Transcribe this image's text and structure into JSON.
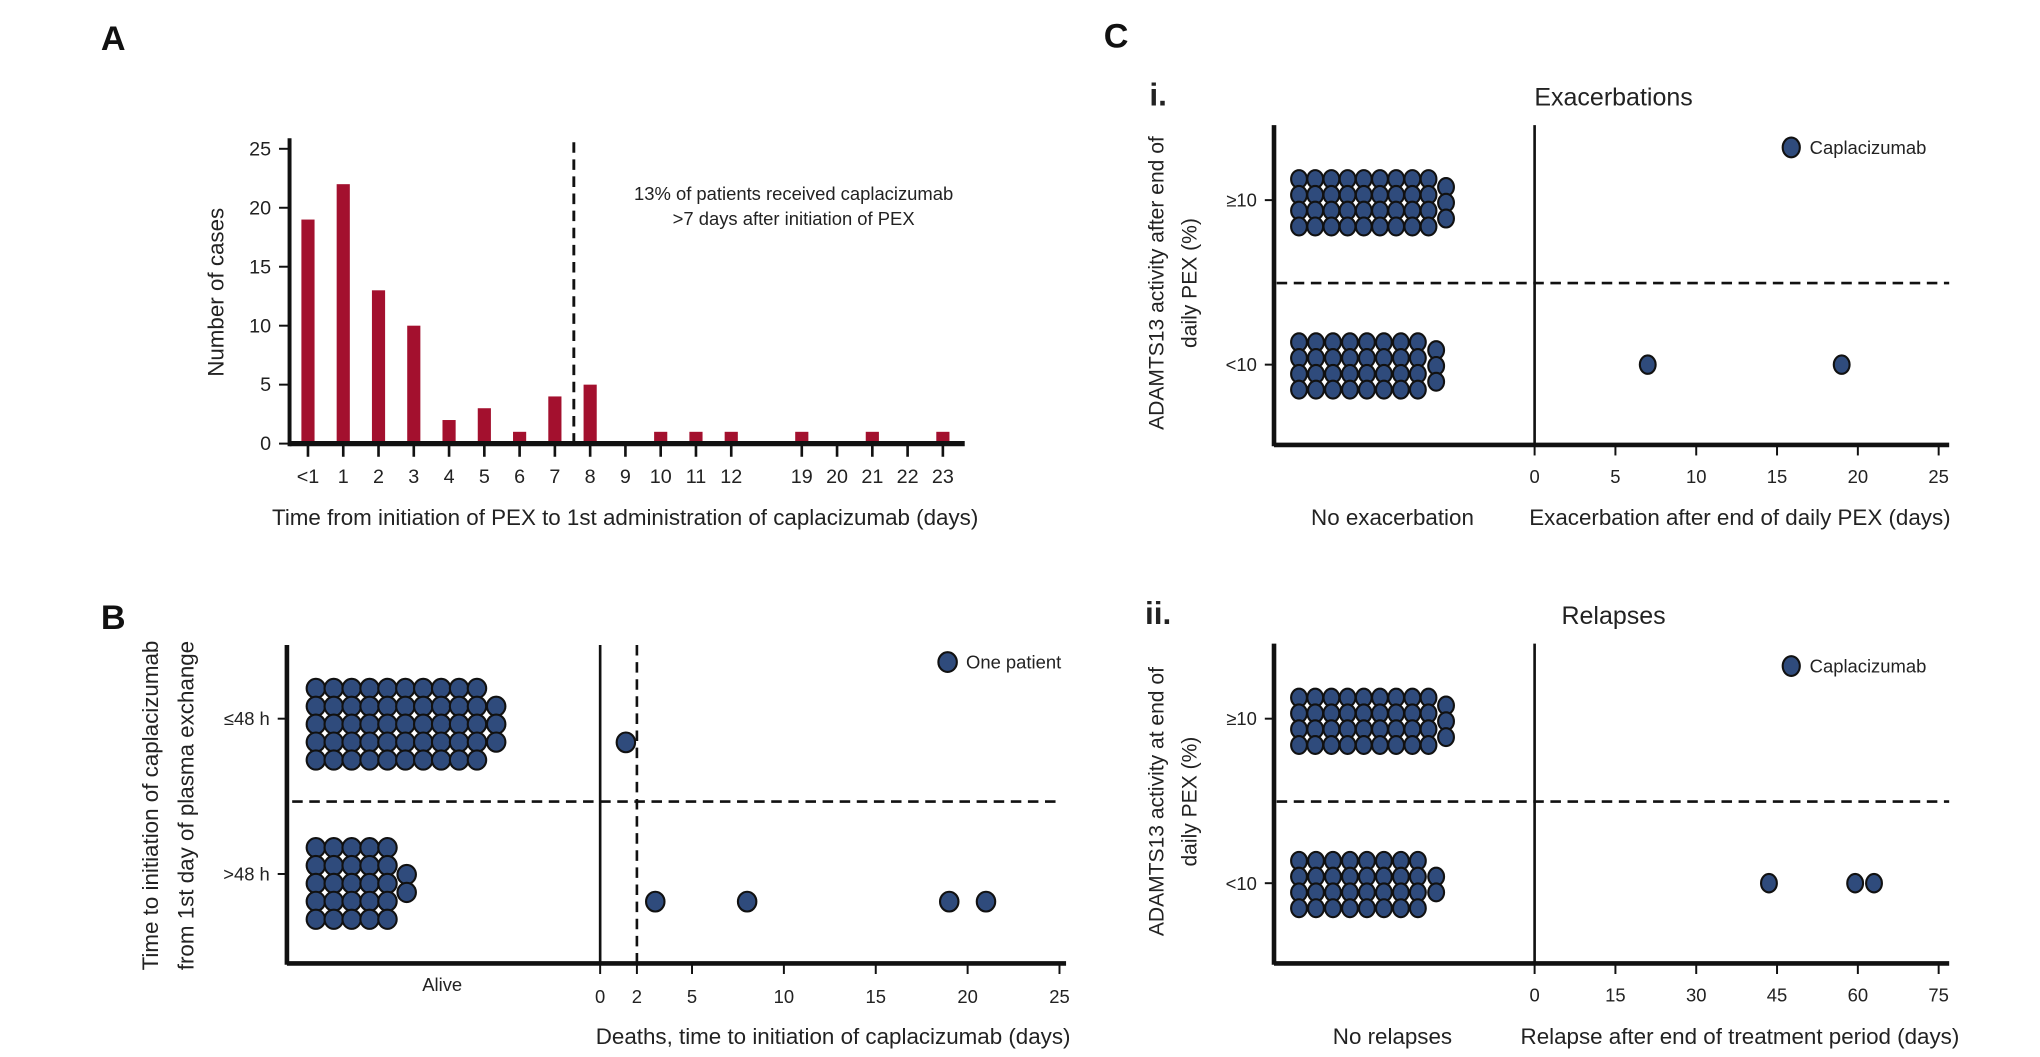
{
  "panels": {
    "A": "A",
    "B": "B",
    "C": "C",
    "Ci": "i.",
    "Cii": "ii."
  },
  "colors": {
    "bar": "#a3102e",
    "dot": "#2f4b7c",
    "axis": "#111111"
  },
  "chart_data": [
    {
      "id": "A",
      "type": "bar",
      "title": "",
      "xlabel": "Time from initiation of PEX to 1st administration of caplacizumab (days)",
      "ylabel": "Number of cases",
      "ylim": [
        0,
        25
      ],
      "yticks": [
        "0",
        "5",
        "10",
        "15",
        "20",
        "25"
      ],
      "categories": [
        "<1",
        "1",
        "2",
        "3",
        "4",
        "5",
        "6",
        "7",
        "8",
        "9",
        "10",
        "11",
        "12",
        "19",
        "20",
        "21",
        "22",
        "23"
      ],
      "values": [
        19,
        22,
        13,
        10,
        2,
        3,
        1,
        4,
        5,
        0,
        1,
        1,
        1,
        1,
        0,
        1,
        0,
        1
      ],
      "threshold_after_category": "7",
      "annotation": [
        "13% of patients received caplacizumab",
        ">7 days after initiation of PEX"
      ]
    },
    {
      "id": "B",
      "type": "scatter",
      "ylabel": [
        "Time to initiation of caplacizumab",
        "from 1st day of plasma exchange"
      ],
      "xlabel": "Deaths, time to initiation of caplacizumab (days)",
      "left_label": "Alive",
      "legend": "One patient",
      "xlim": [
        0,
        25
      ],
      "xticks": [
        "0",
        "2",
        "5",
        "10",
        "15",
        "20",
        "25"
      ],
      "threshold_x": 2,
      "groups": [
        {
          "label": "≤48 h",
          "alive": 53,
          "deaths": [
            1.4
          ]
        },
        {
          "label": ">48 h",
          "alive": 27,
          "deaths": [
            3,
            8,
            19,
            21
          ]
        }
      ]
    },
    {
      "id": "Ci",
      "type": "scatter",
      "title": "Exacerbations",
      "ylabel": [
        "ADAMTS13 activity after end of",
        "daily PEX (%)"
      ],
      "xlabel": "Exacerbation after end of daily PEX (days)",
      "left_label": "No exacerbation",
      "legend": "Caplacizumab",
      "xlim": [
        0,
        25
      ],
      "xticks": [
        "0",
        "5",
        "10",
        "15",
        "20",
        "25"
      ],
      "groups": [
        {
          "label": "≥10",
          "none": 39,
          "events": []
        },
        {
          "label": "<10",
          "none": 35,
          "events": [
            7,
            19
          ]
        }
      ]
    },
    {
      "id": "Cii",
      "type": "scatter",
      "title": "Relapses",
      "ylabel": [
        "ADAMTS13 activity at end of",
        "daily PEX (%)"
      ],
      "xlabel": "Relapse after end of treatment period (days)",
      "left_label": "No relapses",
      "legend": "Caplacizumab",
      "xlim": [
        0,
        75
      ],
      "xticks": [
        "0",
        "15",
        "30",
        "45",
        "60",
        "75"
      ],
      "groups": [
        {
          "label": "≥10",
          "none": 39,
          "events": []
        },
        {
          "label": "<10",
          "none": 34,
          "events": [
            43.5,
            59.5,
            63
          ]
        }
      ]
    }
  ]
}
